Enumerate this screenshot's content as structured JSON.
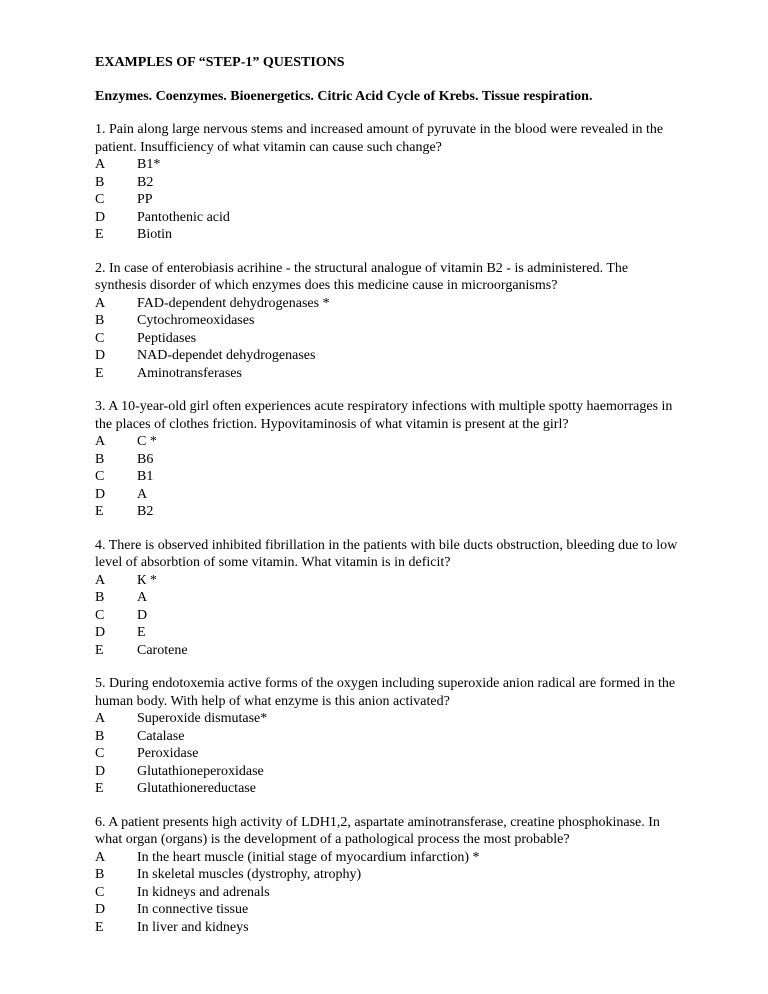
{
  "title": "EXAMPLES OF “STEP-1” QUESTIONS",
  "subtitle": "Enzymes. Coenzymes. Bioenergetics. Citric Acid Cycle of Krebs. Tissue respiration.",
  "questions": [
    {
      "text": "1. Pain along large nervous stems and increased amount of pyruvate in the blood were revealed in the patient. Insufficiency of what vitamin can cause such change?",
      "options": [
        {
          "l": "A",
          "t": "B1*"
        },
        {
          "l": "B",
          "t": "B2"
        },
        {
          "l": "C",
          "t": "PP"
        },
        {
          "l": "D",
          "t": "Pantothenic acid"
        },
        {
          "l": "E",
          "t": "Biotin"
        }
      ]
    },
    {
      "text": "2. In case of enterobiasis acrihine - the structural analogue of vitamin B2 - is administered. The synthesis disorder of which enzymes does this medicine cause in microorganisms?",
      "options": [
        {
          "l": "A",
          "t": "FAD-dependent dehydrogenases *"
        },
        {
          "l": "B",
          "t": "Cytochromeoxidases"
        },
        {
          "l": "C",
          "t": "Peptidases"
        },
        {
          "l": "D",
          "t": "NAD-dependet dehydrogenases"
        },
        {
          "l": "E",
          "t": "Aminotransferases"
        }
      ]
    },
    {
      "text": "3. A 10-year-old girl often experiences acute respiratory infections  with multiple spotty haemorrages in the places of clothes friction. Hypovitaminosis of what vitamin is present at the girl?",
      "options": [
        {
          "l": "A",
          "t": "C *"
        },
        {
          "l": "B",
          "t": "B6"
        },
        {
          "l": "C",
          "t": "B1"
        },
        {
          "l": "D",
          "t": "A"
        },
        {
          "l": "E",
          "t": "B2"
        }
      ]
    },
    {
      "text": "4. There is observed inhibited fibrillation in the patients with bile ducts obstruction, bleeding due to low level of absorbtion of some vitamin. What vitamin is in deficit?",
      "options": [
        {
          "l": "A",
          "t": "К *"
        },
        {
          "l": "B",
          "t": "A"
        },
        {
          "l": "C",
          "t": "D"
        },
        {
          "l": "D",
          "t": "E"
        },
        {
          "l": "E",
          "t": "Carotene"
        }
      ]
    },
    {
      "text": "5. During endotoxemia active forms of the oxygen including superoxide anion radical are formed in the human body. With help of what  enzyme is this anion activated?",
      "options": [
        {
          "l": "A",
          "t": "Superoxide dismutase*"
        },
        {
          "l": "B",
          "t": "Catalase"
        },
        {
          "l": "C",
          "t": "Peroxidase"
        },
        {
          "l": "D",
          "t": "Glutathioneperoxidase"
        },
        {
          "l": "E",
          "t": "Glutathionereductase"
        }
      ]
    },
    {
      "text": "6. A patient presents high activity of LDH1,2, aspartate aminotransferase, creatine phosphokinase. In what organ (organs) is the development of a pathological process the most probable?",
      "options": [
        {
          "l": "A",
          "t": "In the heart muscle (initial stage of myocardium infarction) *"
        },
        {
          "l": "B",
          "t": "In skeletal muscles (dystrophy, atrophy)"
        },
        {
          "l": "C",
          "t": "In kidneys and adrenals"
        },
        {
          "l": "D",
          "t": "In connective tissue"
        },
        {
          "l": "E",
          "t": "In liver and kidneys"
        }
      ]
    }
  ]
}
